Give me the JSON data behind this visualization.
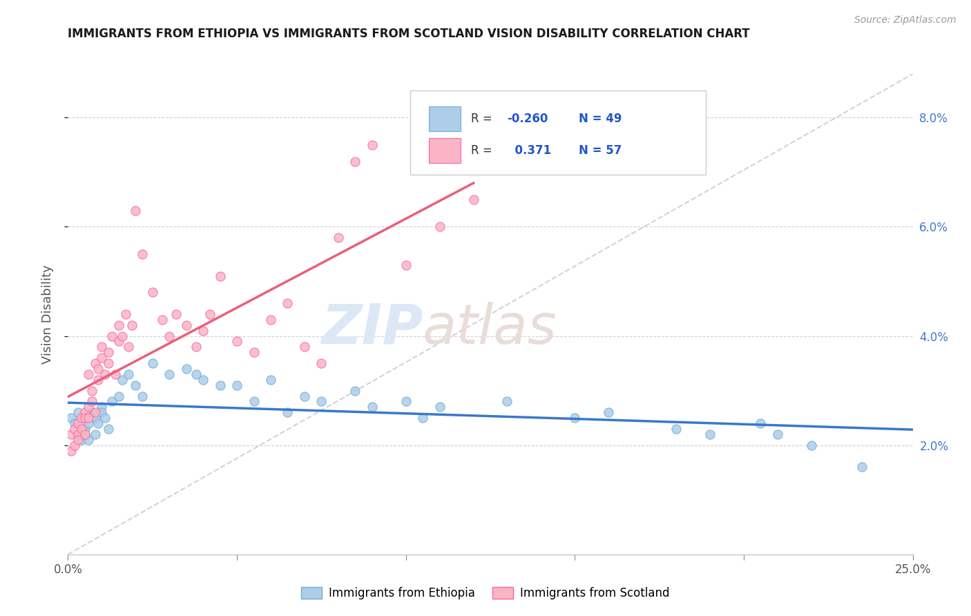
{
  "title": "IMMIGRANTS FROM ETHIOPIA VS IMMIGRANTS FROM SCOTLAND VISION DISABILITY CORRELATION CHART",
  "source": "Source: ZipAtlas.com",
  "ylabel": "Vision Disability",
  "x_min": 0.0,
  "x_max": 0.25,
  "y_min": 0.0,
  "y_max": 0.088,
  "x_ticks": [
    0.0,
    0.05,
    0.1,
    0.15,
    0.2,
    0.25
  ],
  "x_tick_labels_show": [
    "0.0%",
    "",
    "",
    "",
    "",
    "25.0%"
  ],
  "y_ticks_right": [
    0.02,
    0.04,
    0.06,
    0.08
  ],
  "y_tick_labels_right": [
    "2.0%",
    "4.0%",
    "6.0%",
    "8.0%"
  ],
  "ethiopia_color": "#aecde8",
  "ethiopia_edge": "#6baed6",
  "scotland_color": "#fbb4c6",
  "scotland_edge": "#f768a1",
  "ethiopia_R": -0.26,
  "ethiopia_N": 49,
  "scotland_R": 0.371,
  "scotland_N": 57,
  "ethiopia_trend_color": "#3a78c9",
  "scotland_trend_color": "#e8607a",
  "diag_color": "#c8c8c8",
  "background_color": "#ffffff",
  "grid_color": "#cccccc",
  "title_color": "#1a1a1a",
  "legend_r_color": "#2255cc",
  "ethiopia_scatter_x": [
    0.001,
    0.002,
    0.003,
    0.003,
    0.004,
    0.005,
    0.005,
    0.006,
    0.006,
    0.007,
    0.008,
    0.008,
    0.009,
    0.01,
    0.01,
    0.011,
    0.012,
    0.013,
    0.015,
    0.016,
    0.018,
    0.02,
    0.022,
    0.025,
    0.03,
    0.035,
    0.038,
    0.04,
    0.045,
    0.05,
    0.055,
    0.06,
    0.065,
    0.07,
    0.075,
    0.085,
    0.09,
    0.1,
    0.105,
    0.11,
    0.13,
    0.15,
    0.16,
    0.18,
    0.19,
    0.205,
    0.21,
    0.22,
    0.235
  ],
  "ethiopia_scatter_y": [
    0.025,
    0.024,
    0.026,
    0.022,
    0.021,
    0.023,
    0.022,
    0.024,
    0.021,
    0.026,
    0.022,
    0.025,
    0.024,
    0.027,
    0.026,
    0.025,
    0.023,
    0.028,
    0.029,
    0.032,
    0.033,
    0.031,
    0.029,
    0.035,
    0.033,
    0.034,
    0.033,
    0.032,
    0.031,
    0.031,
    0.028,
    0.032,
    0.026,
    0.029,
    0.028,
    0.03,
    0.027,
    0.028,
    0.025,
    0.027,
    0.028,
    0.025,
    0.026,
    0.023,
    0.022,
    0.024,
    0.022,
    0.02,
    0.016
  ],
  "scotland_scatter_x": [
    0.001,
    0.001,
    0.002,
    0.002,
    0.003,
    0.003,
    0.003,
    0.004,
    0.004,
    0.005,
    0.005,
    0.005,
    0.006,
    0.006,
    0.006,
    0.007,
    0.007,
    0.008,
    0.008,
    0.009,
    0.009,
    0.01,
    0.01,
    0.011,
    0.012,
    0.012,
    0.013,
    0.014,
    0.015,
    0.015,
    0.016,
    0.017,
    0.018,
    0.019,
    0.02,
    0.022,
    0.025,
    0.028,
    0.03,
    0.032,
    0.035,
    0.038,
    0.04,
    0.042,
    0.045,
    0.05,
    0.055,
    0.06,
    0.065,
    0.07,
    0.075,
    0.08,
    0.085,
    0.09,
    0.1,
    0.11,
    0.12
  ],
  "scotland_scatter_y": [
    0.022,
    0.019,
    0.023,
    0.02,
    0.024,
    0.022,
    0.021,
    0.025,
    0.023,
    0.026,
    0.025,
    0.022,
    0.027,
    0.033,
    0.025,
    0.028,
    0.03,
    0.026,
    0.035,
    0.032,
    0.034,
    0.036,
    0.038,
    0.033,
    0.035,
    0.037,
    0.04,
    0.033,
    0.042,
    0.039,
    0.04,
    0.044,
    0.038,
    0.042,
    0.063,
    0.055,
    0.048,
    0.043,
    0.04,
    0.044,
    0.042,
    0.038,
    0.041,
    0.044,
    0.051,
    0.039,
    0.037,
    0.043,
    0.046,
    0.038,
    0.035,
    0.058,
    0.072,
    0.075,
    0.053,
    0.06,
    0.065
  ]
}
